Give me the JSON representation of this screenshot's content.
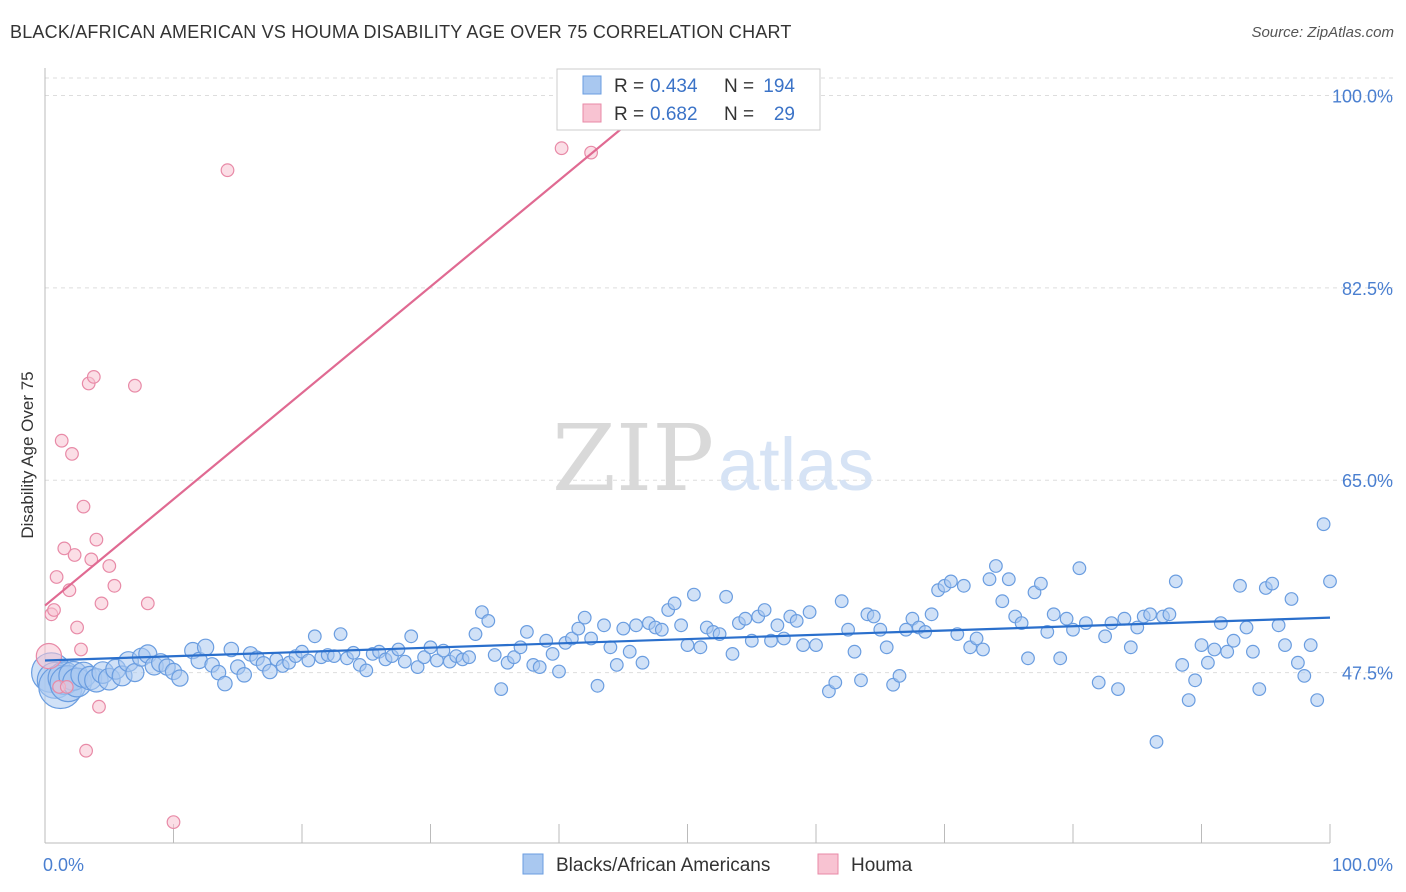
{
  "title": "BLACK/AFRICAN AMERICAN VS HOUMA DISABILITY AGE OVER 75 CORRELATION CHART",
  "source": "Source: ZipAtlas.com",
  "watermark": {
    "zip": "ZIP",
    "atlas": "atlas"
  },
  "legend_top": {
    "r_label": "R =",
    "n_label": "N =",
    "rows": [
      {
        "r": "0.434",
        "n": "194",
        "color": "#a9c8f0",
        "stroke": "#6a9de0"
      },
      {
        "r": "0.682",
        "n": "29",
        "color": "#f8c3d2",
        "stroke": "#e88aa7"
      }
    ]
  },
  "legend_bottom": [
    {
      "label": "Blacks/African Americans",
      "color": "#a9c8f0",
      "stroke": "#6a9de0"
    },
    {
      "label": "Houma",
      "color": "#f8c3d2",
      "stroke": "#e88aa7"
    }
  ],
  "chart_data": {
    "type": "scatter",
    "title": "BLACK/AFRICAN AMERICAN VS HOUMA DISABILITY AGE OVER 75 CORRELATION CHART",
    "xlabel": "",
    "ylabel": "Disability Age Over 75",
    "xlim": [
      0,
      100
    ],
    "ylim": [
      32,
      102.5
    ],
    "x_tick_labels": [
      "0.0%",
      "100.0%"
    ],
    "y_ticks": [
      47.5,
      65.0,
      82.5,
      100.0
    ],
    "y_tick_labels": [
      "47.5%",
      "65.0%",
      "82.5%",
      "100.0%"
    ],
    "grid": true,
    "series": [
      {
        "name": "Blacks/African Americans",
        "color": "#a9c8f0",
        "stroke": "#6a9de0",
        "line_color": "#2a6fcc",
        "trend": {
          "x": [
            0,
            100
          ],
          "y": [
            48.6,
            52.5
          ]
        },
        "points": [
          [
            0.5,
            47.5,
            2.2
          ],
          [
            0.8,
            46.8,
            2.0
          ],
          [
            1.2,
            46.2,
            2.4
          ],
          [
            1.5,
            47.0,
            1.8
          ],
          [
            1.8,
            46.5,
            2.0
          ],
          [
            2.2,
            47.2,
            1.6
          ],
          [
            2.5,
            46.6,
            1.6
          ],
          [
            3.0,
            47.3,
            1.4
          ],
          [
            3.5,
            47.0,
            1.3
          ],
          [
            4.0,
            46.8,
            1.3
          ],
          [
            4.5,
            47.5,
            1.2
          ],
          [
            5.0,
            46.9,
            1.2
          ],
          [
            5.5,
            47.8,
            1.1
          ],
          [
            6.0,
            47.2,
            1.1
          ],
          [
            6.5,
            48.5,
            1.1
          ],
          [
            7.0,
            47.5,
            1.0
          ],
          [
            7.5,
            48.9,
            1.0
          ],
          [
            8.0,
            49.2,
            1.0
          ],
          [
            8.5,
            48.1,
            1.0
          ],
          [
            9.0,
            48.4,
            1.0
          ],
          [
            9.5,
            48.0,
            0.9
          ],
          [
            10.0,
            47.6,
            0.9
          ],
          [
            10.5,
            47.0,
            0.9
          ],
          [
            11.5,
            49.5,
            0.9
          ],
          [
            12.0,
            48.6,
            0.9
          ],
          [
            12.5,
            49.8,
            0.9
          ],
          [
            13.0,
            48.2,
            0.8
          ],
          [
            13.5,
            47.5,
            0.8
          ],
          [
            14.0,
            46.5,
            0.8
          ],
          [
            14.5,
            49.6,
            0.8
          ],
          [
            15.0,
            48.0,
            0.8
          ],
          [
            15.5,
            47.3,
            0.8
          ],
          [
            16.0,
            49.2,
            0.8
          ],
          [
            16.5,
            48.8,
            0.8
          ],
          [
            17.0,
            48.3,
            0.8
          ],
          [
            17.5,
            47.6,
            0.8
          ],
          [
            18.0,
            48.7,
            0.7
          ],
          [
            18.5,
            48.1,
            0.7
          ],
          [
            19.0,
            48.4,
            0.7
          ],
          [
            19.5,
            49.0,
            0.7
          ],
          [
            20.0,
            49.4,
            0.7
          ],
          [
            20.5,
            48.6,
            0.7
          ],
          [
            21.0,
            50.8,
            0.7
          ],
          [
            21.5,
            48.9,
            0.7
          ],
          [
            22.0,
            49.1,
            0.7
          ],
          [
            22.5,
            49.0,
            0.7
          ],
          [
            23.0,
            51.0,
            0.7
          ],
          [
            23.5,
            48.8,
            0.7
          ],
          [
            24.0,
            49.3,
            0.7
          ],
          [
            24.5,
            48.2,
            0.7
          ],
          [
            25.0,
            47.7,
            0.7
          ],
          [
            25.5,
            49.2,
            0.7
          ],
          [
            26.0,
            49.4,
            0.7
          ],
          [
            26.5,
            48.7,
            0.7
          ],
          [
            27.0,
            49.0,
            0.7
          ],
          [
            27.5,
            49.6,
            0.7
          ],
          [
            28.0,
            48.5,
            0.7
          ],
          [
            28.5,
            50.8,
            0.7
          ],
          [
            29.0,
            48.0,
            0.7
          ],
          [
            29.5,
            48.9,
            0.7
          ],
          [
            30.0,
            49.8,
            0.7
          ],
          [
            30.5,
            48.6,
            0.7
          ],
          [
            31.0,
            49.5,
            0.7
          ],
          [
            31.5,
            48.5,
            0.7
          ],
          [
            32.0,
            49.0,
            0.7
          ],
          [
            32.5,
            48.7,
            0.7
          ],
          [
            33.0,
            48.9,
            0.7
          ],
          [
            33.5,
            51.0,
            0.7
          ],
          [
            34.0,
            53.0,
            0.7
          ],
          [
            34.5,
            52.2,
            0.7
          ],
          [
            35.0,
            49.1,
            0.7
          ],
          [
            35.5,
            46.0,
            0.7
          ],
          [
            36.0,
            48.4,
            0.7
          ],
          [
            36.5,
            48.9,
            0.7
          ],
          [
            37.0,
            49.8,
            0.7
          ],
          [
            37.5,
            51.2,
            0.7
          ],
          [
            38.0,
            48.2,
            0.7
          ],
          [
            38.5,
            48.0,
            0.7
          ],
          [
            39.0,
            50.4,
            0.7
          ],
          [
            39.5,
            49.2,
            0.7
          ],
          [
            40.0,
            47.6,
            0.7
          ],
          [
            40.5,
            50.2,
            0.7
          ],
          [
            41.0,
            50.6,
            0.7
          ],
          [
            41.5,
            51.5,
            0.7
          ],
          [
            42.0,
            52.5,
            0.7
          ],
          [
            42.5,
            50.6,
            0.7
          ],
          [
            43.0,
            46.3,
            0.7
          ],
          [
            43.5,
            51.8,
            0.7
          ],
          [
            44.0,
            49.8,
            0.7
          ],
          [
            44.5,
            48.2,
            0.7
          ],
          [
            45.0,
            51.5,
            0.7
          ],
          [
            45.5,
            49.4,
            0.7
          ],
          [
            46.0,
            51.8,
            0.7
          ],
          [
            46.5,
            48.4,
            0.7
          ],
          [
            47.0,
            52.0,
            0.7
          ],
          [
            47.5,
            51.6,
            0.7
          ],
          [
            48.0,
            51.4,
            0.7
          ],
          [
            48.5,
            53.2,
            0.7
          ],
          [
            49.0,
            53.8,
            0.7
          ],
          [
            49.5,
            51.8,
            0.7
          ],
          [
            50.0,
            50.0,
            0.7
          ],
          [
            50.5,
            54.6,
            0.7
          ],
          [
            51.0,
            49.8,
            0.7
          ],
          [
            51.5,
            51.6,
            0.7
          ],
          [
            52.0,
            51.2,
            0.7
          ],
          [
            52.5,
            51.0,
            0.7
          ],
          [
            53.0,
            54.4,
            0.7
          ],
          [
            53.5,
            49.2,
            0.7
          ],
          [
            54.0,
            52.0,
            0.7
          ],
          [
            54.5,
            52.4,
            0.7
          ],
          [
            55.0,
            50.4,
            0.7
          ],
          [
            55.5,
            52.6,
            0.7
          ],
          [
            56.0,
            53.2,
            0.7
          ],
          [
            56.5,
            50.4,
            0.7
          ],
          [
            57.0,
            51.8,
            0.7
          ],
          [
            57.5,
            50.6,
            0.7
          ],
          [
            58.0,
            52.6,
            0.7
          ],
          [
            58.5,
            52.2,
            0.7
          ],
          [
            59.0,
            50.0,
            0.7
          ],
          [
            59.5,
            53.0,
            0.7
          ],
          [
            60.0,
            50.0,
            0.7
          ],
          [
            61.0,
            45.8,
            0.7
          ],
          [
            61.5,
            46.6,
            0.7
          ],
          [
            62.0,
            54.0,
            0.7
          ],
          [
            62.5,
            51.4,
            0.7
          ],
          [
            63.0,
            49.4,
            0.7
          ],
          [
            63.5,
            46.8,
            0.7
          ],
          [
            64.0,
            52.8,
            0.7
          ],
          [
            64.5,
            52.6,
            0.7
          ],
          [
            65.0,
            51.4,
            0.7
          ],
          [
            65.5,
            49.8,
            0.7
          ],
          [
            66.0,
            46.4,
            0.7
          ],
          [
            66.5,
            47.2,
            0.7
          ],
          [
            67.0,
            51.4,
            0.7
          ],
          [
            67.5,
            52.4,
            0.7
          ],
          [
            68.0,
            51.6,
            0.7
          ],
          [
            68.5,
            51.2,
            0.7
          ],
          [
            69.0,
            52.8,
            0.7
          ],
          [
            69.5,
            55.0,
            0.7
          ],
          [
            70.0,
            55.4,
            0.7
          ],
          [
            70.5,
            55.8,
            0.7
          ],
          [
            71.0,
            51.0,
            0.7
          ],
          [
            71.5,
            55.4,
            0.7
          ],
          [
            72.0,
            49.8,
            0.7
          ],
          [
            72.5,
            50.6,
            0.7
          ],
          [
            73.0,
            49.6,
            0.7
          ],
          [
            73.5,
            56.0,
            0.7
          ],
          [
            74.0,
            57.2,
            0.7
          ],
          [
            74.5,
            54.0,
            0.7
          ],
          [
            75.0,
            56.0,
            0.7
          ],
          [
            75.5,
            52.6,
            0.7
          ],
          [
            76.0,
            52.0,
            0.7
          ],
          [
            76.5,
            48.8,
            0.7
          ],
          [
            77.0,
            54.8,
            0.7
          ],
          [
            77.5,
            55.6,
            0.7
          ],
          [
            78.0,
            51.2,
            0.7
          ],
          [
            78.5,
            52.8,
            0.7
          ],
          [
            79.0,
            48.8,
            0.7
          ],
          [
            79.5,
            52.4,
            0.7
          ],
          [
            80.0,
            51.4,
            0.7
          ],
          [
            80.5,
            57.0,
            0.7
          ],
          [
            81.0,
            52.0,
            0.7
          ],
          [
            82.0,
            46.6,
            0.7
          ],
          [
            82.5,
            50.8,
            0.7
          ],
          [
            83.0,
            52.0,
            0.7
          ],
          [
            83.5,
            46.0,
            0.7
          ],
          [
            84.0,
            52.4,
            0.7
          ],
          [
            84.5,
            49.8,
            0.7
          ],
          [
            85.0,
            51.6,
            0.7
          ],
          [
            85.5,
            52.6,
            0.7
          ],
          [
            86.0,
            52.8,
            0.7
          ],
          [
            86.5,
            41.2,
            0.7
          ],
          [
            87.0,
            52.6,
            0.7
          ],
          [
            87.5,
            52.8,
            0.7
          ],
          [
            88.0,
            55.8,
            0.7
          ],
          [
            88.5,
            48.2,
            0.7
          ],
          [
            89.0,
            45.0,
            0.7
          ],
          [
            89.5,
            46.8,
            0.7
          ],
          [
            90.0,
            50.0,
            0.7
          ],
          [
            90.5,
            48.4,
            0.7
          ],
          [
            91.0,
            49.6,
            0.7
          ],
          [
            91.5,
            52.0,
            0.7
          ],
          [
            92.0,
            49.4,
            0.7
          ],
          [
            92.5,
            50.4,
            0.7
          ],
          [
            93.0,
            55.4,
            0.7
          ],
          [
            93.5,
            51.6,
            0.7
          ],
          [
            94.0,
            49.4,
            0.7
          ],
          [
            94.5,
            46.0,
            0.7
          ],
          [
            95.0,
            55.2,
            0.7
          ],
          [
            95.5,
            55.6,
            0.7
          ],
          [
            96.0,
            51.8,
            0.7
          ],
          [
            96.5,
            50.0,
            0.7
          ],
          [
            97.0,
            54.2,
            0.7
          ],
          [
            97.5,
            48.4,
            0.7
          ],
          [
            98.0,
            47.2,
            0.7
          ],
          [
            98.5,
            50.0,
            0.7
          ],
          [
            99.0,
            45.0,
            0.7
          ],
          [
            99.5,
            61.0,
            0.7
          ],
          [
            100.0,
            55.8,
            0.7
          ]
        ]
      },
      {
        "name": "Houma",
        "color": "#f8c3d2",
        "stroke": "#e88aa7",
        "line_color": "#e06a92",
        "trend": {
          "x": [
            0,
            48.5
          ],
          "y": [
            53.6,
            100.5
          ]
        },
        "points": [
          [
            0.3,
            49.0,
            1.4
          ],
          [
            0.5,
            52.8,
            0.7
          ],
          [
            0.7,
            53.2,
            0.7
          ],
          [
            0.9,
            56.2,
            0.7
          ],
          [
            1.1,
            46.2,
            0.7
          ],
          [
            1.3,
            68.6,
            0.7
          ],
          [
            1.5,
            58.8,
            0.7
          ],
          [
            1.7,
            46.2,
            0.7
          ],
          [
            1.9,
            55.0,
            0.7
          ],
          [
            2.1,
            67.4,
            0.7
          ],
          [
            2.3,
            58.2,
            0.7
          ],
          [
            2.5,
            51.6,
            0.7
          ],
          [
            2.8,
            49.6,
            0.7
          ],
          [
            3.0,
            62.6,
            0.7
          ],
          [
            3.2,
            40.4,
            0.7
          ],
          [
            3.4,
            73.8,
            0.7
          ],
          [
            3.6,
            57.8,
            0.7
          ],
          [
            3.8,
            74.4,
            0.7
          ],
          [
            4.0,
            59.6,
            0.7
          ],
          [
            4.2,
            44.4,
            0.7
          ],
          [
            4.4,
            53.8,
            0.7
          ],
          [
            5.0,
            57.2,
            0.7
          ],
          [
            5.4,
            55.4,
            0.7
          ],
          [
            7.0,
            73.6,
            0.7
          ],
          [
            8.0,
            53.8,
            0.7
          ],
          [
            10.0,
            33.9,
            0.7
          ],
          [
            14.2,
            93.2,
            0.7
          ],
          [
            40.2,
            95.2,
            0.7
          ],
          [
            42.5,
            94.8,
            0.7
          ]
        ]
      }
    ]
  }
}
